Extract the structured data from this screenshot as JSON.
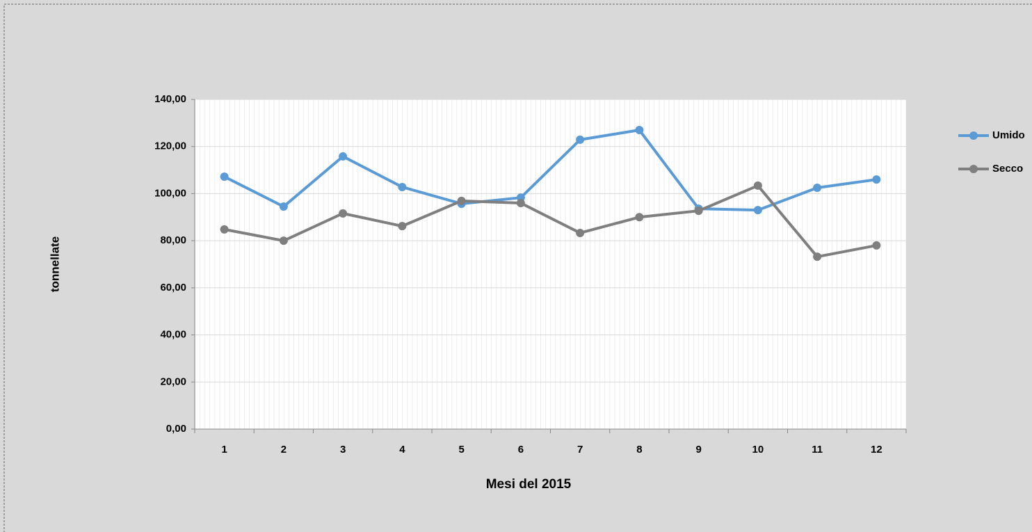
{
  "chart_data": {
    "type": "line",
    "x_label": "Mesi del 2015",
    "y_label": "tonnellate",
    "categories": [
      "1",
      "2",
      "3",
      "4",
      "5",
      "6",
      "7",
      "8",
      "9",
      "10",
      "11",
      "12"
    ],
    "series": [
      {
        "name": "Umido",
        "color": "#5b9bd5",
        "values": [
          107.2,
          94.5,
          115.8,
          102.8,
          95.7,
          98.3,
          122.9,
          127,
          93.6,
          93,
          102.5,
          106
        ]
      },
      {
        "name": "Secco",
        "color": "#7f7f7f",
        "values": [
          84.8,
          80,
          91.6,
          86.2,
          96.9,
          96,
          83.3,
          90,
          92.7,
          103.4,
          73.2,
          78
        ]
      }
    ],
    "ylim": [
      0,
      140
    ],
    "yticks": [
      {
        "value": 0,
        "label": "0,00"
      },
      {
        "value": 20,
        "label": "20,00"
      },
      {
        "value": 40,
        "label": "40,00"
      },
      {
        "value": 60,
        "label": "60,00"
      },
      {
        "value": 80,
        "label": "80,00"
      },
      {
        "value": 100,
        "label": "100,00"
      },
      {
        "value": 120,
        "label": "120,00"
      },
      {
        "value": 140,
        "label": "140,00"
      }
    ],
    "grid": true,
    "legend": "right"
  }
}
